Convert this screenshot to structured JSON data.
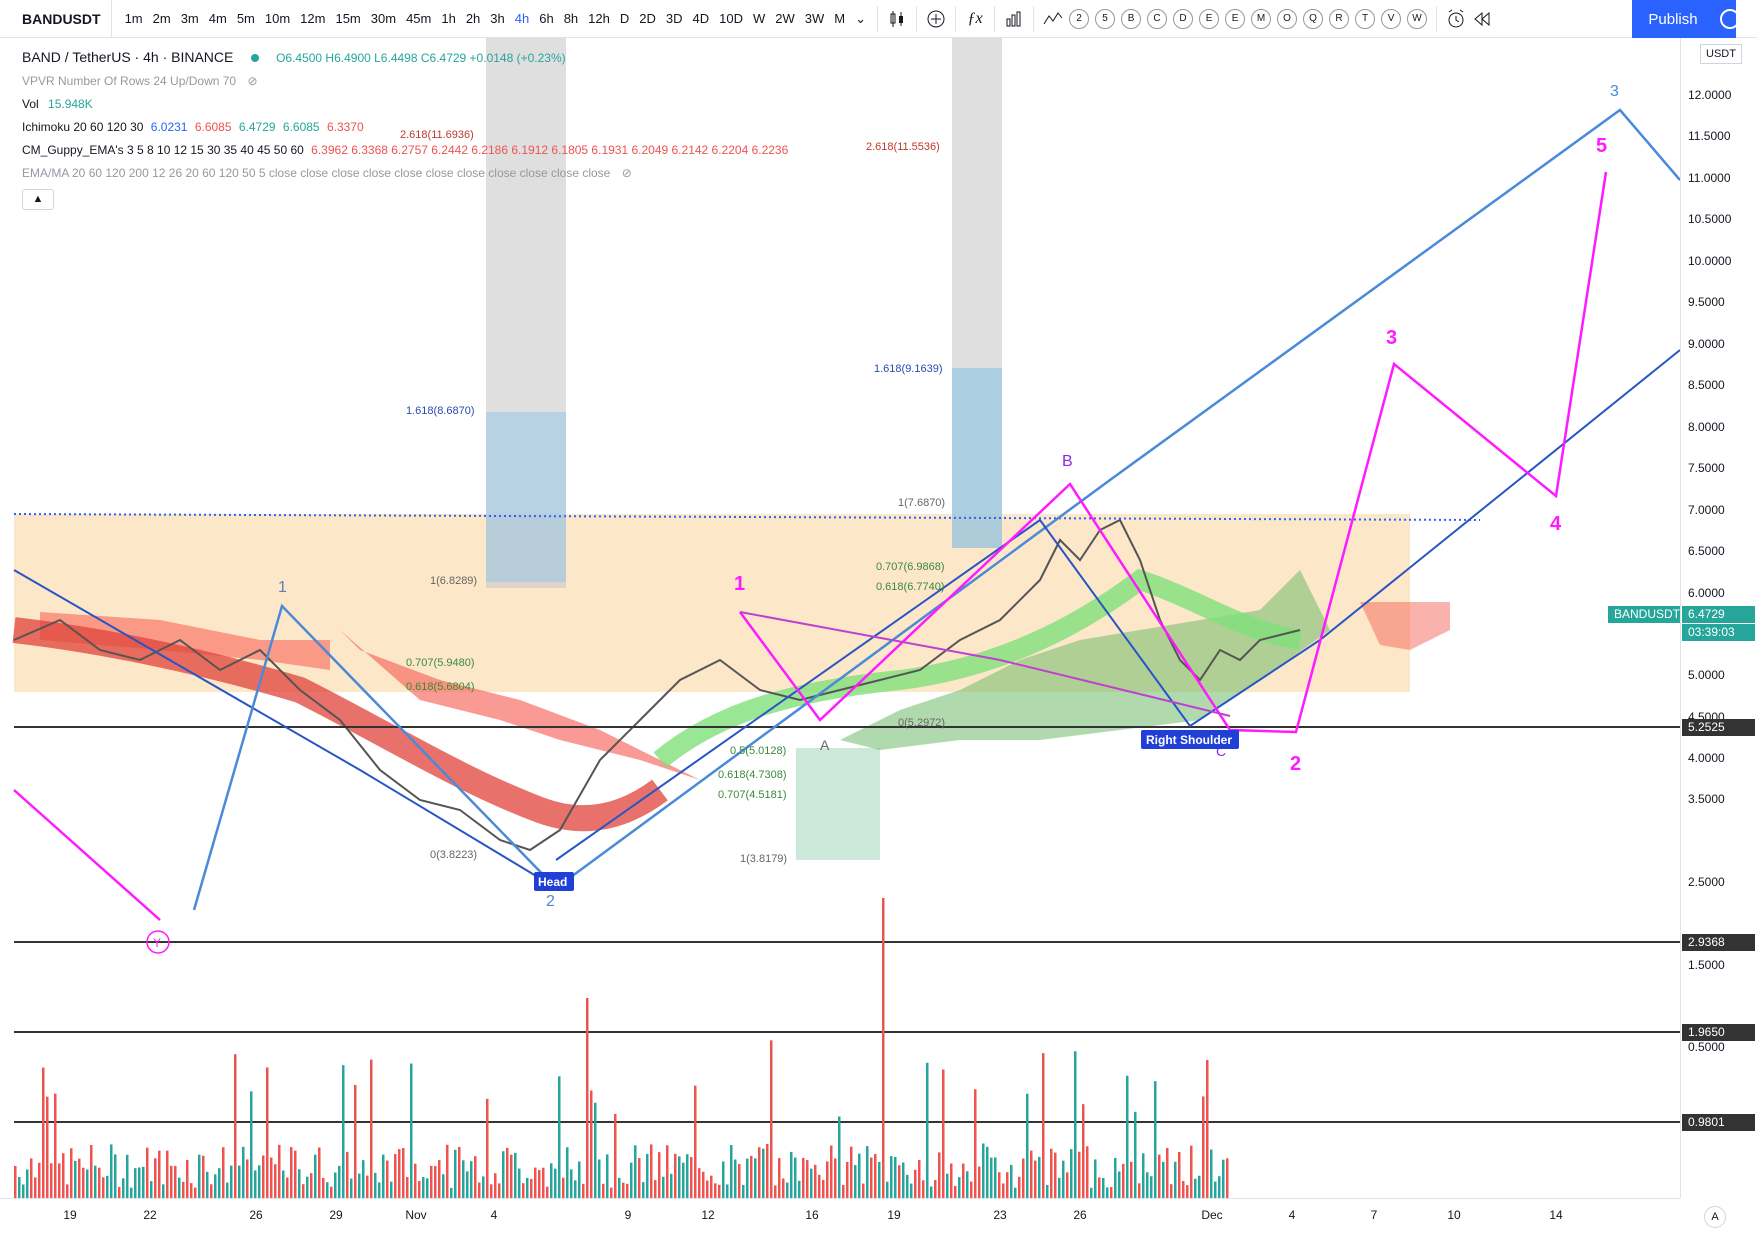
{
  "toolbar": {
    "symbol": "BANDUSDT",
    "intervals": [
      "1m",
      "2m",
      "3m",
      "4m",
      "5m",
      "10m",
      "12m",
      "15m",
      "30m",
      "45m",
      "1h",
      "2h",
      "3h",
      "4h",
      "6h",
      "8h",
      "12h",
      "D",
      "2D",
      "3D",
      "4D",
      "10D",
      "W",
      "2W",
      "3W",
      "M"
    ],
    "active_interval": "4h",
    "chart_icons": [
      "candles-icon",
      "add-indicator-icon",
      "fx-icon",
      "bar-chart-icon",
      "compare-icon"
    ],
    "compare_letters": [
      "2",
      "5",
      "B",
      "C",
      "D",
      "E",
      "E",
      "M",
      "O",
      "Q",
      "R",
      "T",
      "V",
      "W"
    ],
    "publish_label": "Publish",
    "alert_icon": "alert-clock-icon",
    "replay_icon": "replay-icon"
  },
  "legend": {
    "title": "BAND / TetherUS · 4h · BINANCE",
    "ohlc": "O6.4500 H6.4900 L6.4498 C6.4729 +0.0148 (+0.23%)",
    "vpvr": "VPVR Number Of Rows 24 Up/Down 70",
    "vol_label": "Vol",
    "vol_value": "15.948K",
    "ichimoku_label": "Ichimoku 20 60 120 30",
    "ichimoku_values": [
      "6.0231",
      "6.6085",
      "6.4729",
      "6.6085",
      "6.3370"
    ],
    "guppy_label": "CM_Guppy_EMA's 3 5 8 10 12 15 30 35 40 45 50 60",
    "guppy_values": "6.3962 6.3368 6.2757 6.2442 6.2186 6.1912 6.1805 6.1931 6.2049 6.2142 6.2204 6.2236",
    "ema_label": "EMA/MA 20 60 120 200 12 26 20 60 120 50 5 close close close close close close close close close close close"
  },
  "price_axis": {
    "currency": "USDT",
    "ticks": [
      "12.0000",
      "11.5000",
      "11.0000",
      "10.5000",
      "10.0000",
      "9.5000",
      "9.0000",
      "8.5000",
      "8.0000",
      "7.5000",
      "7.0000",
      "6.5000",
      "6.0000",
      "5.5000",
      "5.0000",
      "4.5000",
      "4.0000",
      "3.5000",
      "2.5000",
      "1.5000",
      "0.5000"
    ],
    "current_symbol": "BANDUSDT",
    "current_price": "6.4729",
    "countdown": "03:39:03",
    "levels": [
      "5.2525",
      "2.9368",
      "1.9650",
      "0.9801"
    ]
  },
  "time_axis": {
    "labels": [
      "19",
      "22",
      "26",
      "29",
      "Nov",
      "4",
      "9",
      "12",
      "16",
      "19",
      "23",
      "26",
      "Dec",
      "4",
      "7",
      "10",
      "14"
    ]
  },
  "annotations": {
    "head": "Head",
    "right_shoulder": "Right Shoulder",
    "waves_blue": [
      "1",
      "2",
      "3"
    ],
    "waves_magenta": [
      "1",
      "2",
      "3",
      "4",
      "5"
    ],
    "abc": [
      "A",
      "B",
      "C"
    ],
    "y_label": "Y",
    "fib1": [
      "2.618(11.6936)",
      "1.618(8.6870)",
      "1(6.8289)",
      "0.707(5.9480)",
      "0.618(5.6804)",
      "0(3.8223)"
    ],
    "fib2": [
      "2.618(11.5536)",
      "1.618(9.1639)",
      "1(7.6870)",
      "0.707(6.9868)",
      "0.618(6.7740)",
      "0(5.2972)"
    ],
    "fib3": [
      "0.5(5.0128)",
      "0.618(4.7308)",
      "0.707(4.5181)",
      "1(3.8179)"
    ]
  },
  "colors": {
    "accent": "#2962ff",
    "up": "#26a69a",
    "down": "#ef5350",
    "magenta": "#ff00ff",
    "blue_line": "#4a8ad8",
    "orange_zone": "#fcdcb0"
  }
}
